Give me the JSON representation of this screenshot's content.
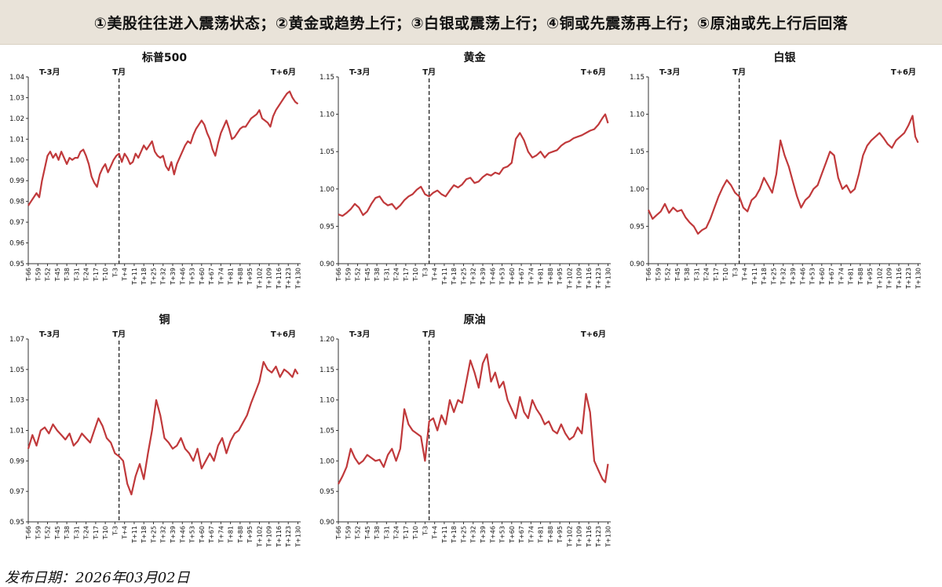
{
  "banner": {
    "title": "①美股往往进入震荡状态；②黄金或趋势上行；③白银或震荡上行；④铜或先震荡再上行；⑤原油或先上行后回落"
  },
  "footer": {
    "date_label": "发布日期：2026年03月02日"
  },
  "style": {
    "line_color": "#c0393b",
    "axis_color": "#333333",
    "text_color": "#111111"
  },
  "period_labels": {
    "start": "T-3月",
    "event": "T月",
    "end": "T+6月"
  },
  "chart_data": [
    {
      "type": "line",
      "title": "标普500",
      "ylim": [
        0.95,
        1.04
      ],
      "yticks": [
        "0.95",
        "0.96",
        "0.97",
        "0.98",
        "0.99",
        "1.00",
        "1.01",
        "1.02",
        "1.03",
        "1.04"
      ],
      "xticks": [
        "T-66",
        "T-59",
        "T-52",
        "T-45",
        "T-38",
        "T-31",
        "T-24",
        "T-17",
        "T-10",
        "T-3",
        "T+4",
        "T+11",
        "T+18",
        "T+25",
        "T+32",
        "T+39",
        "T+46",
        "T+53",
        "T+60",
        "T+67",
        "T+74",
        "T+81",
        "T+88",
        "T+95",
        "T+102",
        "T+109",
        "T+116",
        "T+123",
        "T+130"
      ],
      "event_x": 0,
      "series": [
        {
          "x": [
            -66,
            -64,
            -62,
            -60,
            -58,
            -56,
            -54,
            -52,
            -50,
            -48,
            -46,
            -44,
            -42,
            -40,
            -38,
            -36,
            -34,
            -32,
            -30,
            -28,
            -26,
            -24,
            -22,
            -20,
            -18,
            -16,
            -14,
            -12,
            -10,
            -8,
            -6,
            -4,
            -2,
            0,
            2,
            4,
            6,
            8,
            10,
            12,
            14,
            16,
            18,
            20,
            22,
            24,
            26,
            28,
            30,
            32,
            34,
            36,
            38,
            40,
            42,
            44,
            46,
            48,
            50,
            52,
            54,
            56,
            58,
            60,
            62,
            64,
            66,
            68,
            70,
            72,
            74,
            76,
            78,
            80,
            82,
            84,
            86,
            88,
            90,
            92,
            94,
            96,
            98,
            100,
            102,
            104,
            106,
            108,
            110,
            112,
            114,
            116,
            118,
            120,
            122,
            124,
            126,
            128,
            130
          ],
          "y": [
            0.978,
            0.98,
            0.982,
            0.984,
            0.982,
            0.99,
            0.996,
            1.002,
            1.004,
            1.001,
            1.003,
            1.0,
            1.004,
            1.001,
            0.998,
            1.001,
            1.0,
            1.001,
            1.001,
            1.004,
            1.005,
            1.002,
            0.998,
            0.992,
            0.989,
            0.987,
            0.993,
            0.996,
            0.998,
            0.994,
            0.997,
            1.0,
            1.002,
            1.003,
            0.999,
            1.003,
            1.001,
            0.998,
            0.999,
            1.003,
            1.001,
            1.004,
            1.007,
            1.005,
            1.007,
            1.009,
            1.004,
            1.002,
            1.001,
            1.002,
            0.997,
            0.995,
            0.999,
            0.993,
            0.998,
            1.001,
            1.004,
            1.007,
            1.009,
            1.008,
            1.012,
            1.015,
            1.017,
            1.019,
            1.017,
            1.013,
            1.01,
            1.005,
            1.002,
            1.008,
            1.013,
            1.016,
            1.019,
            1.015,
            1.01,
            1.011,
            1.013,
            1.015,
            1.016,
            1.016,
            1.018,
            1.02,
            1.021,
            1.022,
            1.024,
            1.02,
            1.019,
            1.018,
            1.016,
            1.021,
            1.024,
            1.026,
            1.028,
            1.03,
            1.032,
            1.033,
            1.03,
            1.028,
            1.027
          ]
        }
      ]
    },
    {
      "type": "line",
      "title": "黄金",
      "ylim": [
        0.9,
        1.15
      ],
      "yticks": [
        "0.90",
        "0.95",
        "1.00",
        "1.05",
        "1.10",
        "1.15"
      ],
      "xticks": [
        "T-66",
        "T-59",
        "T-52",
        "T-45",
        "T-38",
        "T-31",
        "T-24",
        "T-17",
        "T-10",
        "T-3",
        "T+4",
        "T+11",
        "T+18",
        "T+25",
        "T+32",
        "T+39",
        "T+46",
        "T+53",
        "T+60",
        "T+67",
        "T+74",
        "T+81",
        "T+88",
        "T+95",
        "T+102",
        "T+109",
        "T+116",
        "T+123",
        "T+130"
      ],
      "event_x": 0,
      "series": [
        {
          "x": [
            -66,
            -63,
            -60,
            -57,
            -54,
            -51,
            -48,
            -45,
            -42,
            -39,
            -36,
            -33,
            -30,
            -27,
            -24,
            -21,
            -18,
            -15,
            -12,
            -9,
            -6,
            -3,
            0,
            3,
            6,
            9,
            12,
            15,
            18,
            21,
            24,
            27,
            30,
            33,
            36,
            39,
            42,
            45,
            48,
            51,
            54,
            57,
            60,
            63,
            66,
            69,
            72,
            75,
            78,
            81,
            84,
            87,
            90,
            93,
            96,
            99,
            102,
            105,
            108,
            111,
            114,
            117,
            120,
            123,
            126,
            128,
            130
          ],
          "y": [
            0.966,
            0.964,
            0.968,
            0.973,
            0.98,
            0.975,
            0.965,
            0.97,
            0.98,
            0.988,
            0.99,
            0.982,
            0.978,
            0.98,
            0.973,
            0.978,
            0.985,
            0.99,
            0.993,
            0.999,
            1.003,
            0.993,
            0.99,
            0.995,
            0.998,
            0.993,
            0.99,
            0.998,
            1.005,
            1.002,
            1.006,
            1.013,
            1.015,
            1.008,
            1.01,
            1.016,
            1.02,
            1.018,
            1.022,
            1.02,
            1.028,
            1.03,
            1.035,
            1.067,
            1.075,
            1.065,
            1.05,
            1.042,
            1.045,
            1.05,
            1.042,
            1.048,
            1.05,
            1.052,
            1.058,
            1.062,
            1.064,
            1.068,
            1.07,
            1.072,
            1.075,
            1.078,
            1.08,
            1.086,
            1.095,
            1.1,
            1.088
          ]
        }
      ]
    },
    {
      "type": "line",
      "title": "白银",
      "ylim": [
        0.9,
        1.15
      ],
      "yticks": [
        "0.90",
        "0.95",
        "1.00",
        "1.05",
        "1.10",
        "1.15"
      ],
      "xticks": [
        "T-66",
        "T-59",
        "T-52",
        "T-45",
        "T-38",
        "T-31",
        "T-24",
        "T-17",
        "T-10",
        "T-3",
        "T+4",
        "T+11",
        "T+18",
        "T+25",
        "T+32",
        "T+39",
        "T+46",
        "T+53",
        "T+60",
        "T+67",
        "T+74",
        "T+81",
        "T+88",
        "T+95",
        "T+102",
        "T+109",
        "T+116",
        "T+123",
        "T+130"
      ],
      "event_x": 0,
      "series": [
        {
          "x": [
            -66,
            -63,
            -60,
            -57,
            -54,
            -51,
            -48,
            -45,
            -42,
            -39,
            -36,
            -33,
            -30,
            -27,
            -24,
            -21,
            -18,
            -15,
            -12,
            -9,
            -6,
            -3,
            0,
            3,
            6,
            9,
            12,
            15,
            18,
            21,
            24,
            27,
            30,
            33,
            36,
            39,
            42,
            45,
            48,
            51,
            54,
            57,
            60,
            63,
            66,
            69,
            72,
            75,
            78,
            81,
            84,
            87,
            90,
            93,
            96,
            99,
            102,
            105,
            108,
            111,
            114,
            117,
            120,
            123,
            126,
            128,
            130
          ],
          "y": [
            0.972,
            0.96,
            0.965,
            0.97,
            0.98,
            0.968,
            0.975,
            0.97,
            0.972,
            0.962,
            0.955,
            0.95,
            0.94,
            0.945,
            0.948,
            0.96,
            0.975,
            0.99,
            1.002,
            1.012,
            1.005,
            0.995,
            0.99,
            0.975,
            0.97,
            0.985,
            0.99,
            1.0,
            1.015,
            1.005,
            0.995,
            1.02,
            1.065,
            1.045,
            1.03,
            1.01,
            0.99,
            0.975,
            0.985,
            0.99,
            1.0,
            1.005,
            1.02,
            1.035,
            1.05,
            1.045,
            1.015,
            1.0,
            1.005,
            0.995,
            1.0,
            1.02,
            1.045,
            1.058,
            1.065,
            1.07,
            1.075,
            1.068,
            1.06,
            1.055,
            1.065,
            1.07,
            1.075,
            1.085,
            1.098,
            1.07,
            1.062
          ]
        }
      ]
    },
    {
      "type": "line",
      "title": "铜",
      "ylim": [
        0.95,
        1.07
      ],
      "yticks": [
        "0.95",
        "0.97",
        "0.99",
        "1.01",
        "1.03",
        "1.05",
        "1.07"
      ],
      "xticks": [
        "T-66",
        "T-59",
        "T-52",
        "T-45",
        "T-38",
        "T-31",
        "T-24",
        "T-17",
        "T-10",
        "T-3",
        "T+4",
        "T+11",
        "T+18",
        "T+25",
        "T+32",
        "T+39",
        "T+46",
        "T+53",
        "T+60",
        "T+67",
        "T+74",
        "T+81",
        "T+88",
        "T+95",
        "T+102",
        "T+109",
        "T+116",
        "T+123",
        "T+130"
      ],
      "event_x": 0,
      "series": [
        {
          "x": [
            -66,
            -63,
            -60,
            -57,
            -54,
            -51,
            -48,
            -45,
            -42,
            -39,
            -36,
            -33,
            -30,
            -27,
            -24,
            -21,
            -18,
            -15,
            -12,
            -9,
            -6,
            -3,
            0,
            3,
            6,
            9,
            12,
            15,
            18,
            21,
            24,
            27,
            30,
            33,
            36,
            39,
            42,
            45,
            48,
            51,
            54,
            57,
            60,
            63,
            66,
            69,
            72,
            75,
            78,
            81,
            84,
            87,
            90,
            93,
            96,
            99,
            102,
            105,
            108,
            111,
            114,
            117,
            120,
            123,
            126,
            128,
            130
          ],
          "y": [
            0.998,
            1.007,
            1.0,
            1.01,
            1.012,
            1.008,
            1.014,
            1.01,
            1.007,
            1.004,
            1.008,
            1.0,
            1.003,
            1.008,
            1.005,
            1.002,
            1.01,
            1.018,
            1.013,
            1.005,
            1.002,
            0.995,
            0.993,
            0.99,
            0.975,
            0.968,
            0.98,
            0.988,
            0.978,
            0.995,
            1.01,
            1.03,
            1.02,
            1.005,
            1.002,
            0.998,
            1.0,
            1.005,
            0.998,
            0.995,
            0.99,
            0.998,
            0.985,
            0.99,
            0.995,
            0.99,
            1.0,
            1.005,
            0.995,
            1.003,
            1.008,
            1.01,
            1.015,
            1.02,
            1.028,
            1.035,
            1.042,
            1.055,
            1.05,
            1.048,
            1.052,
            1.045,
            1.05,
            1.048,
            1.045,
            1.05,
            1.047
          ]
        }
      ]
    },
    {
      "type": "line",
      "title": "原油",
      "ylim": [
        0.9,
        1.2
      ],
      "yticks": [
        "0.90",
        "0.95",
        "1.00",
        "1.05",
        "1.10",
        "1.15",
        "1.20"
      ],
      "xticks": [
        "T-66",
        "T-59",
        "T-52",
        "T-45",
        "T-38",
        "T-31",
        "T-24",
        "T-17",
        "T-10",
        "T-3",
        "T+4",
        "T+11",
        "T+18",
        "T+25",
        "T+32",
        "T+39",
        "T+46",
        "T+53",
        "T+60",
        "T+67",
        "T+74",
        "T+81",
        "T+88",
        "T+95",
        "T+102",
        "T+109",
        "T+116",
        "T+123",
        "T+130"
      ],
      "event_x": 0,
      "series": [
        {
          "x": [
            -66,
            -63,
            -60,
            -57,
            -54,
            -51,
            -48,
            -45,
            -42,
            -39,
            -36,
            -33,
            -30,
            -27,
            -24,
            -21,
            -18,
            -15,
            -12,
            -9,
            -6,
            -3,
            0,
            3,
            6,
            9,
            12,
            15,
            18,
            21,
            24,
            27,
            30,
            33,
            36,
            39,
            42,
            45,
            48,
            51,
            54,
            57,
            60,
            63,
            66,
            69,
            72,
            75,
            78,
            81,
            84,
            87,
            90,
            93,
            96,
            99,
            102,
            105,
            108,
            111,
            114,
            117,
            120,
            123,
            126,
            128,
            130
          ],
          "y": [
            0.962,
            0.975,
            0.99,
            1.02,
            1.005,
            0.995,
            1.0,
            1.01,
            1.005,
            1.0,
            1.002,
            0.99,
            1.01,
            1.02,
            1.0,
            1.02,
            1.085,
            1.06,
            1.05,
            1.045,
            1.04,
            1.0,
            1.065,
            1.07,
            1.05,
            1.075,
            1.06,
            1.1,
            1.08,
            1.1,
            1.095,
            1.13,
            1.165,
            1.145,
            1.12,
            1.16,
            1.175,
            1.13,
            1.145,
            1.12,
            1.13,
            1.1,
            1.085,
            1.07,
            1.105,
            1.08,
            1.07,
            1.1,
            1.085,
            1.075,
            1.06,
            1.065,
            1.05,
            1.045,
            1.06,
            1.045,
            1.035,
            1.04,
            1.055,
            1.045,
            1.11,
            1.08,
            1.0,
            0.985,
            0.97,
            0.965,
            0.995
          ]
        }
      ]
    }
  ]
}
